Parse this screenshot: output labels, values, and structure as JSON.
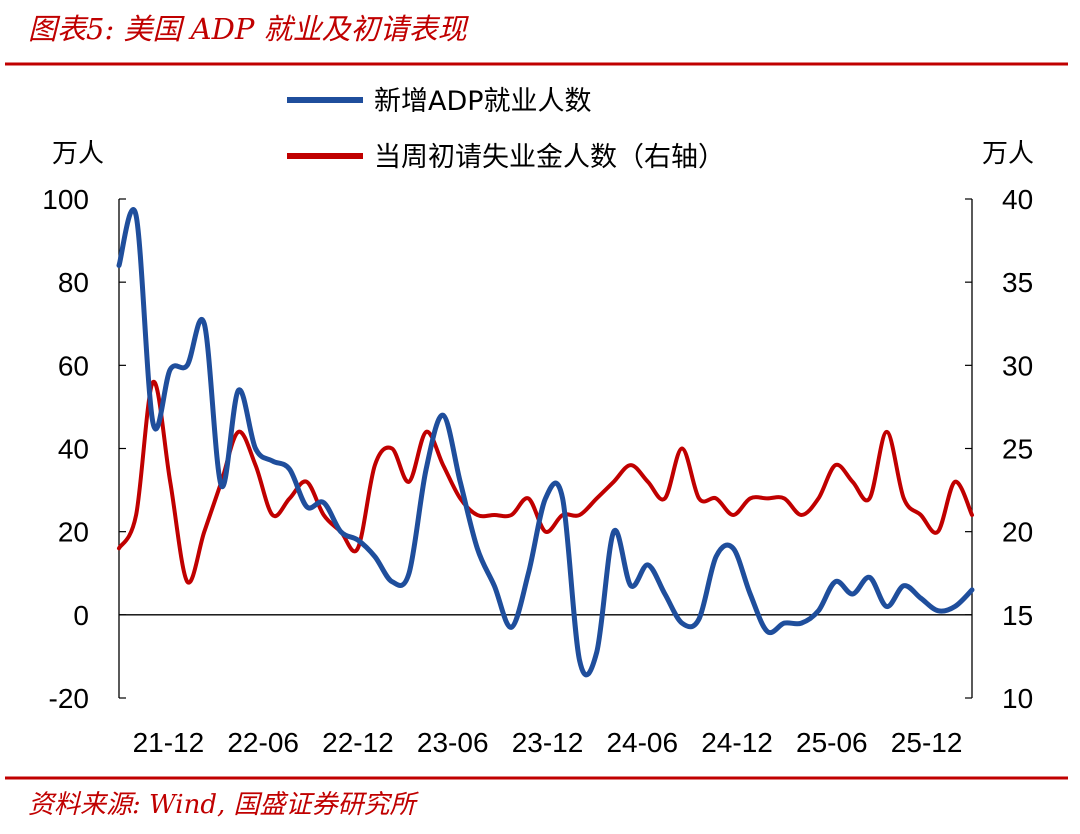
{
  "header": {
    "title": "图表5:  美国 ADP 就业及初请表现"
  },
  "footer": {
    "source": "资料来源:  Wind,  国盛证券研究所"
  },
  "colors": {
    "accent": "#c00000",
    "series_adp": "#1f4e9c",
    "series_claims": "#c00000"
  },
  "chart_data": {
    "type": "line",
    "title": "",
    "legend": [
      "新增ADP就业人数",
      "当周初请失业金人数（右轴）"
    ],
    "legend_placement": "top-center",
    "grid": false,
    "y_left": {
      "unit": "万人",
      "range": [
        -20,
        100
      ],
      "ticks": [
        "100",
        "80",
        "60",
        "40",
        "20",
        "0",
        "-20"
      ]
    },
    "y_right": {
      "unit": "万人",
      "range": [
        10,
        40
      ],
      "ticks": [
        "40",
        "35",
        "30",
        "25",
        "20",
        "15",
        "10"
      ]
    },
    "x_ticks": [
      "21-12",
      "22-06",
      "22-12",
      "23-06",
      "23-12",
      "24-06",
      "24-12",
      "25-06",
      "25-12"
    ],
    "x_range": [
      "2021-12",
      "2026-02"
    ],
    "series": [
      {
        "name": "新增ADP就业人数",
        "axis": "left",
        "x": [
          "2021-12",
          "2022-01",
          "2022-02",
          "2022-03",
          "2022-04",
          "2022-05",
          "2022-06",
          "2022-07",
          "2022-08",
          "2022-09",
          "2022-10",
          "2022-11",
          "2022-12",
          "2023-01",
          "2023-02",
          "2023-03",
          "2023-04",
          "2023-05",
          "2023-06",
          "2023-07",
          "2023-08",
          "2023-09",
          "2023-10",
          "2023-11",
          "2023-12",
          "2024-01",
          "2024-02",
          "2024-03",
          "2024-04",
          "2024-05",
          "2024-06",
          "2024-07",
          "2024-08",
          "2024-09",
          "2024-10",
          "2024-11",
          "2024-12",
          "2025-01",
          "2025-02",
          "2025-03",
          "2025-04",
          "2025-05",
          "2025-06",
          "2025-07",
          "2025-08",
          "2025-09",
          "2025-10",
          "2025-11",
          "2025-12",
          "2026-01",
          "2026-02"
        ],
        "values": [
          84,
          96,
          46,
          59,
          60,
          70,
          31,
          54,
          40,
          37,
          35,
          26,
          27,
          20,
          18,
          14,
          8,
          10,
          35,
          48,
          32,
          16,
          7,
          -3,
          10,
          28,
          28,
          -11,
          -9,
          20,
          7,
          12,
          5,
          -2,
          -1,
          14,
          16,
          5,
          -4,
          -2,
          -2,
          1,
          8,
          5,
          9,
          2,
          7,
          4,
          1,
          2,
          6
        ]
      },
      {
        "name": "当周初请失业金人数（右轴）",
        "axis": "right",
        "x": [
          "2021-12",
          "2022-01",
          "2022-02",
          "2022-03",
          "2022-04",
          "2022-05",
          "2022-06",
          "2022-07",
          "2022-08",
          "2022-09",
          "2022-10",
          "2022-11",
          "2022-12",
          "2023-01",
          "2023-02",
          "2023-03",
          "2023-04",
          "2023-05",
          "2023-06",
          "2023-07",
          "2023-08",
          "2023-09",
          "2023-10",
          "2023-11",
          "2023-12",
          "2024-01",
          "2024-02",
          "2024-03",
          "2024-04",
          "2024-05",
          "2024-06",
          "2024-07",
          "2024-08",
          "2024-09",
          "2024-10",
          "2024-11",
          "2024-12",
          "2025-01",
          "2025-02",
          "2025-03",
          "2025-04",
          "2025-05",
          "2025-06",
          "2025-07",
          "2025-08",
          "2025-09",
          "2025-10",
          "2025-11",
          "2025-12",
          "2026-01",
          "2026-02"
        ],
        "values": [
          19,
          21,
          29,
          23,
          17,
          20,
          23,
          26,
          24,
          21,
          22,
          23,
          21,
          20,
          19,
          24,
          25,
          23,
          26,
          24,
          22,
          21,
          21,
          21,
          22,
          20,
          21,
          21,
          22,
          23,
          24,
          23,
          22,
          25,
          22,
          22,
          21,
          22,
          22,
          22,
          21,
          22,
          24,
          23,
          22,
          26,
          22,
          21,
          20,
          23,
          21
        ]
      }
    ]
  }
}
